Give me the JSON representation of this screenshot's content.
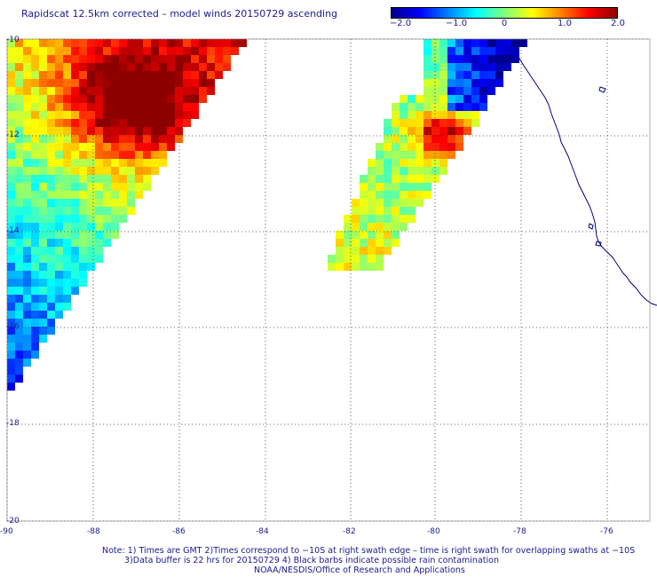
{
  "title": "Rapidscat 12.5km corrected – model winds 20150729 ascending",
  "colorbar": {
    "labels": [
      "−2.0",
      "−1.0",
      "0",
      "1.0",
      "2.0"
    ],
    "range": [
      -2.0,
      2.0
    ],
    "colors": [
      "#00008c",
      "#0000ff",
      "#0080ff",
      "#00ffff",
      "#80ff80",
      "#ffff00",
      "#ff8000",
      "#ff0000",
      "#8c0000"
    ]
  },
  "map": {
    "lat_labels": [
      "-10",
      "-12",
      "-14",
      "-16",
      "-18",
      "-20"
    ],
    "lon_labels": [
      "-90",
      "-88",
      "-86",
      "-84",
      "-82",
      "-80",
      "-78",
      "-76"
    ],
    "lon_range": [
      -90,
      -75
    ],
    "lat_range": [
      -20,
      -10
    ],
    "coast_color": "#00007a"
  },
  "notes": {
    "line1": "Note: 1) Times are GMT 2)Times correspond to −10S at right swath edge – time is right swath for overlapping swaths at −10S",
    "line2": "3)Data buffer is 22 hrs for 20150729 4) Black barbs indicate possible rain contamination",
    "line3": "NOAA/NESDIS/Office of Research and Applications"
  }
}
